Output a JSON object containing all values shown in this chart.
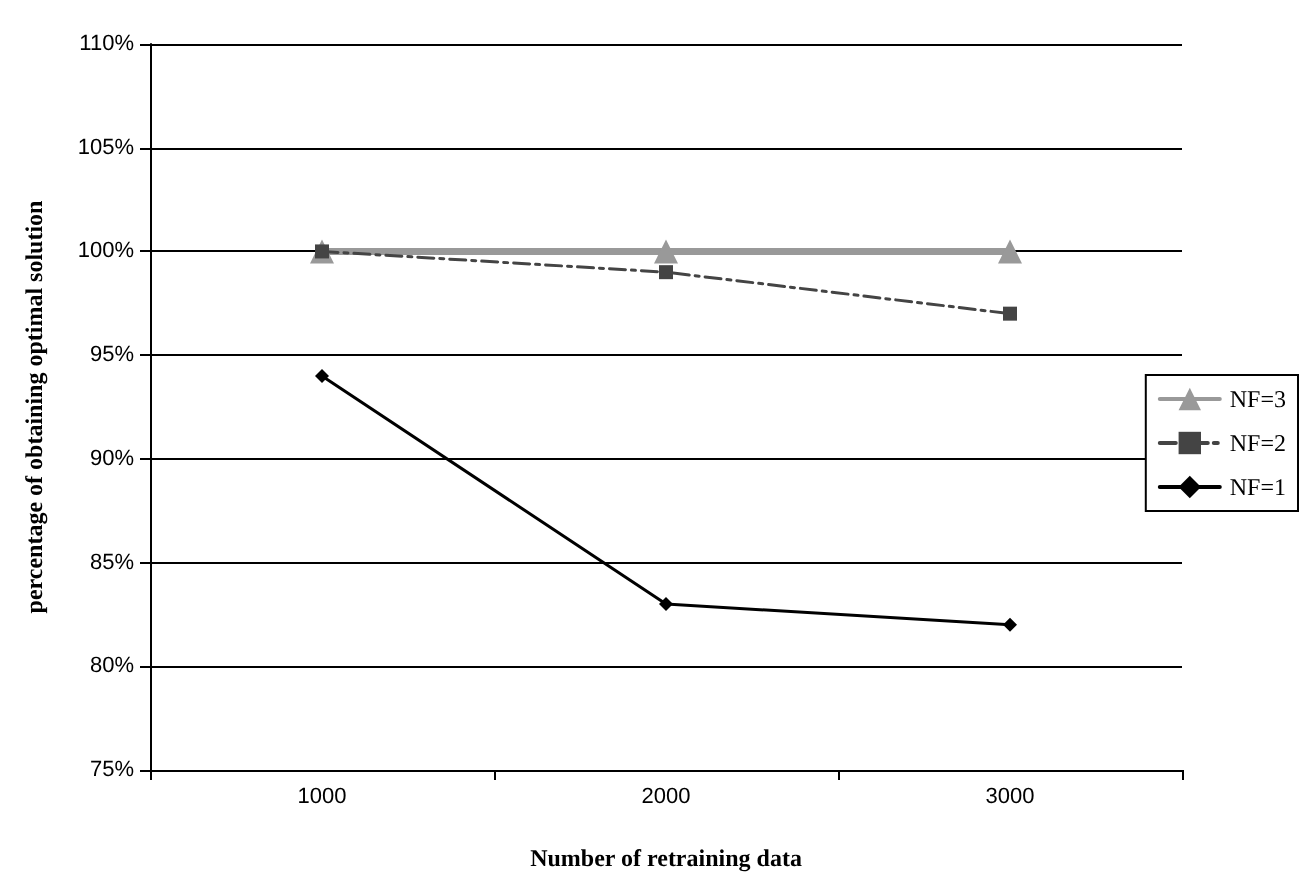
{
  "chart_data": {
    "type": "line",
    "xlabel": "Number of retraining data",
    "ylabel": "percentage of obtaining optimal solution",
    "categories": [
      "1000",
      "2000",
      "3000"
    ],
    "series": [
      {
        "name": "NF=3",
        "color": "#999999",
        "values": [
          100,
          100,
          100
        ],
        "marker": "triangle",
        "line_style": "solid"
      },
      {
        "name": "NF=2",
        "color": "#444444",
        "values": [
          100,
          99,
          97
        ],
        "marker": "square",
        "line_style": "dashed"
      },
      {
        "name": "NF=1",
        "color": "#000000",
        "values": [
          94,
          83,
          82
        ],
        "marker": "diamond",
        "line_style": "solid"
      }
    ],
    "ylim": [
      75,
      110
    ],
    "yticks": [
      {
        "value": 75,
        "label": "75%"
      },
      {
        "value": 80,
        "label": "80%"
      },
      {
        "value": 85,
        "label": "85%"
      },
      {
        "value": 90,
        "label": "90%"
      },
      {
        "value": 95,
        "label": "95%"
      },
      {
        "value": 100,
        "label": "100%"
      },
      {
        "value": 105,
        "label": "105%"
      },
      {
        "value": 110,
        "label": "110%"
      }
    ],
    "grid": "y",
    "legend": "right"
  }
}
